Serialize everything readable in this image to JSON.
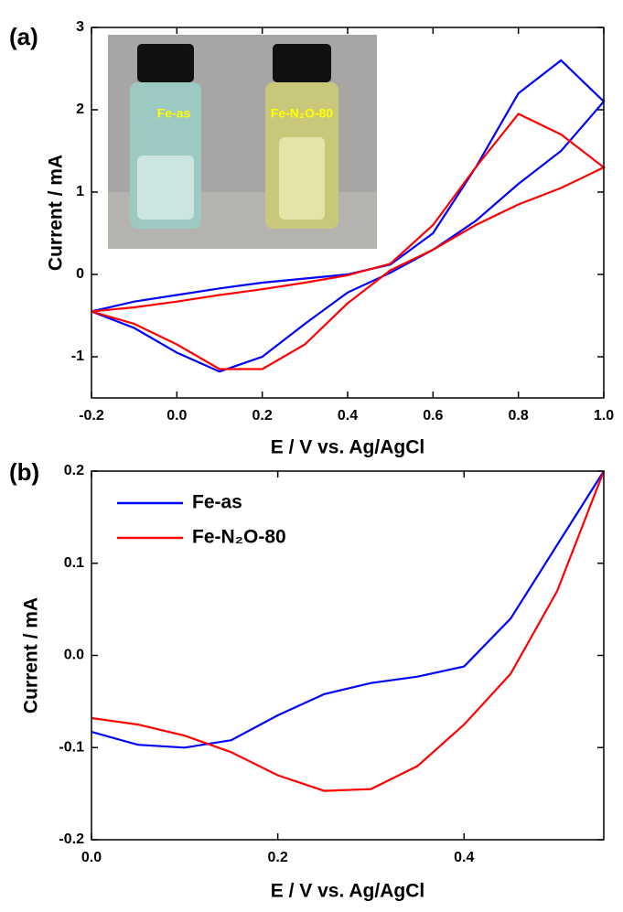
{
  "chart_data": [
    {
      "type": "line",
      "panel_label": "(a)",
      "x_label": "E / V vs. Ag/AgCl",
      "y_label": "Current / mA",
      "annotations": [
        "Fe-as",
        "Fe-N₂O-80"
      ],
      "x": [
        -0.2,
        -0.1,
        0.0,
        0.1,
        0.2,
        0.3,
        0.4,
        0.5,
        0.6,
        0.7,
        0.8,
        0.9,
        1.0,
        0.9,
        0.8,
        0.7,
        0.6,
        0.5,
        0.4,
        0.3,
        0.2,
        0.1,
        0.0,
        -0.1,
        -0.2
      ],
      "series": [
        {
          "name": "Fe-as",
          "color": "#0000ff",
          "values": [
            -0.45,
            -0.33,
            -0.25,
            -0.17,
            -0.1,
            -0.05,
            0.0,
            0.12,
            0.5,
            1.3,
            2.2,
            2.6,
            2.1,
            1.5,
            1.1,
            0.65,
            0.3,
            0.02,
            -0.22,
            -0.6,
            -1.0,
            -1.18,
            -0.95,
            -0.65,
            -0.45
          ]
        },
        {
          "name": "Fe-N₂O-80",
          "color": "#ff0000",
          "values": [
            -0.45,
            -0.4,
            -0.33,
            -0.25,
            -0.18,
            -0.1,
            -0.01,
            0.13,
            0.6,
            1.3,
            1.95,
            1.7,
            1.3,
            1.05,
            0.85,
            0.6,
            0.3,
            0.05,
            -0.35,
            -0.85,
            -1.15,
            -1.15,
            -0.85,
            -0.6,
            -0.45
          ]
        }
      ],
      "xlim": [
        -0.2,
        1.0
      ],
      "ylim": [
        -1.5,
        3
      ],
      "xticks": [
        -0.2,
        {
          "value": 0,
          "label": "0.0"
        },
        0.2,
        0.4,
        0.6,
        0.8,
        {
          "value": 1,
          "label": "1.0"
        }
      ],
      "yticks": [
        -1,
        0,
        1,
        2,
        3
      ]
    },
    {
      "type": "line",
      "panel_label": "(b)",
      "x_label": "E / V vs. Ag/AgCl",
      "y_label": "Current / mA",
      "legend": "upper left",
      "x": [
        0,
        0.05,
        0.1,
        0.15,
        0.2,
        0.25,
        0.3,
        0.35,
        0.4,
        0.45,
        0.5,
        0.55
      ],
      "series": [
        {
          "name": "Fe-as",
          "color": "#0000ff",
          "values": [
            -0.083,
            -0.097,
            -0.1,
            -0.092,
            -0.065,
            -0.042,
            -0.03,
            -0.023,
            -0.012,
            0.04,
            0.12,
            0.2
          ]
        },
        {
          "name": "Fe-N₂O-80",
          "color": "#ff0000",
          "values": [
            -0.068,
            -0.075,
            -0.087,
            -0.105,
            -0.13,
            -0.147,
            -0.145,
            -0.12,
            -0.075,
            -0.02,
            0.07,
            0.2
          ]
        }
      ],
      "xlim": [
        0,
        0.55
      ],
      "ylim": [
        -0.2,
        0.2
      ],
      "xticks": [
        {
          "value": 0,
          "label": "0.0"
        },
        0.2,
        0.4
      ],
      "yticks": [
        -0.2,
        -0.1,
        {
          "value": 0,
          "label": "0.0"
        },
        0.1,
        0.2
      ]
    }
  ]
}
